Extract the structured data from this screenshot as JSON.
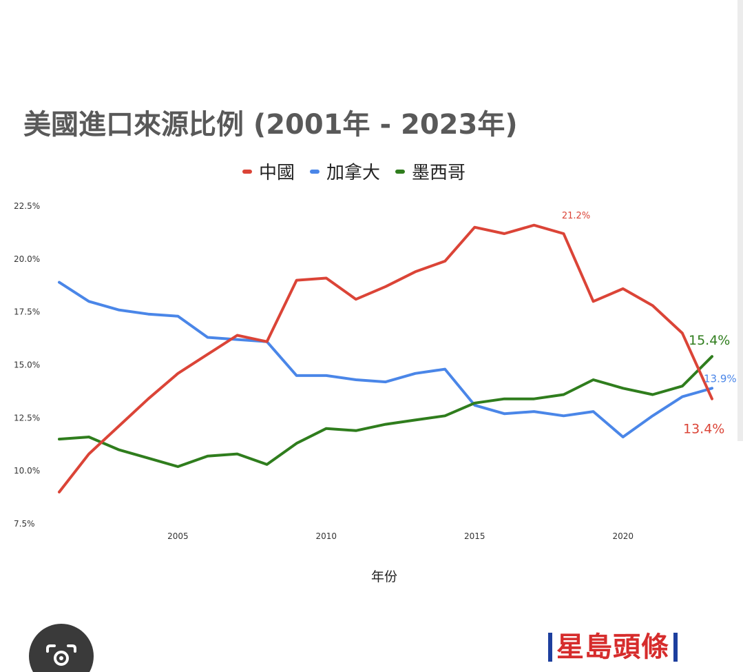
{
  "chart_data": {
    "type": "line",
    "title": "美國進口來源比例 (2001年 - 2023年)",
    "xlabel": "年份",
    "ylabel": "",
    "legend_position": "top",
    "grid": false,
    "x": [
      2001,
      2002,
      2003,
      2004,
      2005,
      2006,
      2007,
      2008,
      2009,
      2010,
      2011,
      2012,
      2013,
      2014,
      2015,
      2016,
      2017,
      2018,
      2019,
      2020,
      2021,
      2022,
      2023
    ],
    "xlim": [
      2001,
      2023
    ],
    "x_ticks": [
      "2005",
      "2010",
      "2015",
      "2020"
    ],
    "ylim": [
      7.5,
      22.5
    ],
    "y_ticks": [
      "7.5%",
      "10.0%",
      "12.5%",
      "15.0%",
      "17.5%",
      "20.0%",
      "22.5%"
    ],
    "series": [
      {
        "name": "中國",
        "color": "#db4437",
        "values": [
          9.0,
          10.8,
          12.1,
          13.4,
          14.6,
          15.5,
          16.4,
          16.1,
          19.0,
          19.1,
          18.1,
          18.7,
          19.4,
          19.9,
          21.5,
          21.2,
          21.6,
          21.2,
          18.0,
          18.6,
          17.8,
          16.5,
          13.4
        ]
      },
      {
        "name": "加拿大",
        "color": "#4a86e8",
        "values": [
          18.9,
          18.0,
          17.6,
          17.4,
          17.3,
          16.3,
          16.2,
          16.1,
          14.5,
          14.5,
          14.3,
          14.2,
          14.6,
          14.8,
          13.1,
          12.7,
          12.8,
          12.6,
          12.8,
          11.6,
          12.6,
          13.5,
          13.9
        ]
      },
      {
        "name": "墨西哥",
        "color": "#2f7d1d",
        "values": [
          11.5,
          11.6,
          11.0,
          10.6,
          10.2,
          10.7,
          10.8,
          10.3,
          11.3,
          12.0,
          11.9,
          12.2,
          12.4,
          12.6,
          13.2,
          13.4,
          13.4,
          13.6,
          14.3,
          13.9,
          13.6,
          14.0,
          15.4
        ]
      }
    ],
    "annotations": [
      {
        "text": "21.2%",
        "series": "中國",
        "x": 2018,
        "y": 21.2,
        "size": "small"
      },
      {
        "text": "15.4%",
        "series": "墨西哥",
        "x": 2023,
        "y": 15.4,
        "size": "large"
      },
      {
        "text": "13.9%",
        "series": "加拿大",
        "x": 2023,
        "y": 13.9,
        "size": "medium"
      },
      {
        "text": "13.4%",
        "series": "中國",
        "x": 2023,
        "y": 13.4,
        "size": "large"
      }
    ]
  },
  "ui": {
    "camera_icon": "camera-search-icon",
    "logo_text": "星島頭條"
  }
}
